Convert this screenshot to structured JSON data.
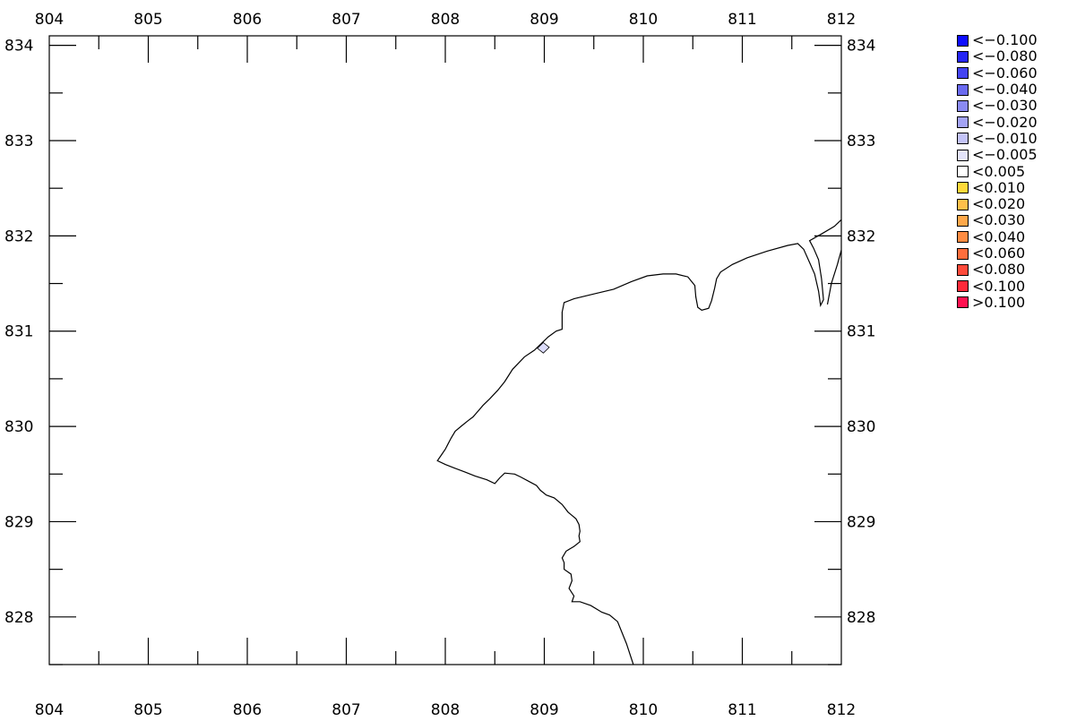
{
  "map": {
    "x_ticks": [
      "804",
      "805",
      "806",
      "807",
      "808",
      "809",
      "810",
      "811",
      "812"
    ],
    "y_ticks": [
      "834",
      "833",
      "832",
      "831",
      "830",
      "829",
      "828"
    ],
    "x_range": [
      804,
      812
    ],
    "y_range": [
      827.5,
      834.1
    ],
    "coastline": [
      [
        809.9,
        827.5
      ],
      [
        809.83,
        827.72
      ],
      [
        809.74,
        827.95
      ],
      [
        809.66,
        828.02
      ],
      [
        809.58,
        828.05
      ],
      [
        809.47,
        828.12
      ],
      [
        809.36,
        828.16
      ],
      [
        809.28,
        828.16
      ],
      [
        809.3,
        828.22
      ],
      [
        809.25,
        828.3
      ],
      [
        809.28,
        828.38
      ],
      [
        809.27,
        828.45
      ],
      [
        809.2,
        828.5
      ],
      [
        809.2,
        828.57
      ],
      [
        809.18,
        828.62
      ],
      [
        809.22,
        828.69
      ],
      [
        809.3,
        828.74
      ],
      [
        809.36,
        828.79
      ],
      [
        809.35,
        828.85
      ],
      [
        809.36,
        828.9
      ],
      [
        809.35,
        828.97
      ],
      [
        809.32,
        829.03
      ],
      [
        809.24,
        829.1
      ],
      [
        809.18,
        829.18
      ],
      [
        809.1,
        829.25
      ],
      [
        809.02,
        829.28
      ],
      [
        808.96,
        829.33
      ],
      [
        808.92,
        829.38
      ],
      [
        808.85,
        829.42
      ],
      [
        808.76,
        829.47
      ],
      [
        808.7,
        829.5
      ],
      [
        808.6,
        829.51
      ],
      [
        808.55,
        829.46
      ],
      [
        808.5,
        829.4
      ],
      [
        808.42,
        829.44
      ],
      [
        808.3,
        829.48
      ],
      [
        808.2,
        829.52
      ],
      [
        808.1,
        829.56
      ],
      [
        808.0,
        829.6
      ],
      [
        807.92,
        829.64
      ],
      [
        807.96,
        829.7
      ],
      [
        808.0,
        829.76
      ],
      [
        808.03,
        829.82
      ],
      [
        808.06,
        829.88
      ],
      [
        808.1,
        829.95
      ],
      [
        808.17,
        830.01
      ],
      [
        808.23,
        830.06
      ],
      [
        808.28,
        830.1
      ],
      [
        808.33,
        830.16
      ],
      [
        808.38,
        830.22
      ],
      [
        808.45,
        830.29
      ],
      [
        808.53,
        830.38
      ],
      [
        808.6,
        830.47
      ],
      [
        808.68,
        830.6
      ],
      [
        808.8,
        830.73
      ],
      [
        808.9,
        830.8
      ],
      [
        808.97,
        830.87
      ],
      [
        809.04,
        830.94
      ],
      [
        809.12,
        831.0
      ],
      [
        809.18,
        831.02
      ],
      [
        809.18,
        831.1
      ],
      [
        809.18,
        831.2
      ],
      [
        809.2,
        831.3
      ],
      [
        809.3,
        831.34
      ],
      [
        809.5,
        831.39
      ],
      [
        809.7,
        831.44
      ],
      [
        809.88,
        831.52
      ],
      [
        810.04,
        831.58
      ],
      [
        810.2,
        831.6
      ],
      [
        810.33,
        831.6
      ],
      [
        810.45,
        831.57
      ],
      [
        810.52,
        831.48
      ],
      [
        810.53,
        831.36
      ],
      [
        810.55,
        831.25
      ],
      [
        810.59,
        831.22
      ],
      [
        810.66,
        831.24
      ],
      [
        810.69,
        831.32
      ],
      [
        810.72,
        831.45
      ],
      [
        810.74,
        831.55
      ],
      [
        810.78,
        831.62
      ],
      [
        810.9,
        831.7
      ],
      [
        811.05,
        831.77
      ],
      [
        811.25,
        831.84
      ],
      [
        811.46,
        831.9
      ],
      [
        811.56,
        831.92
      ],
      [
        811.62,
        831.86
      ],
      [
        811.68,
        831.72
      ],
      [
        811.73,
        831.6
      ],
      [
        811.77,
        831.42
      ],
      [
        811.79,
        831.27
      ],
      [
        811.82,
        831.33
      ],
      [
        811.8,
        831.55
      ],
      [
        811.77,
        831.75
      ],
      [
        811.72,
        831.87
      ],
      [
        811.68,
        831.95
      ],
      [
        811.8,
        832.02
      ],
      [
        811.93,
        832.1
      ],
      [
        812.0,
        832.17
      ]
    ],
    "cell_color": "#dcdcfa"
  },
  "legend": [
    {
      "label": "<−0.100",
      "color": "#0d0dff"
    },
    {
      "label": "<−0.080",
      "color": "#2626f5"
    },
    {
      "label": "<−0.060",
      "color": "#4444f2"
    },
    {
      "label": "<−0.040",
      "color": "#6a6af0"
    },
    {
      "label": "<−0.030",
      "color": "#8a8af2"
    },
    {
      "label": "<−0.020",
      "color": "#a3a3f5"
    },
    {
      "label": "<−0.010",
      "color": "#c3c3f8"
    },
    {
      "label": "<−0.005",
      "color": "#e4e4fb"
    },
    {
      "label": "<0.005",
      "color": "#ffffff"
    },
    {
      "label": "<0.010",
      "color": "#ffd93a"
    },
    {
      "label": "<0.020",
      "color": "#ffc04a"
    },
    {
      "label": "<0.030",
      "color": "#ffa84a"
    },
    {
      "label": "<0.040",
      "color": "#ff8c42"
    },
    {
      "label": "<0.060",
      "color": "#ff6e3c"
    },
    {
      "label": "<0.080",
      "color": "#ff4a3a"
    },
    {
      "label": "<0.100",
      "color": "#ff2a3a"
    },
    {
      "label": ">0.100",
      "color": "#ff1050"
    }
  ]
}
